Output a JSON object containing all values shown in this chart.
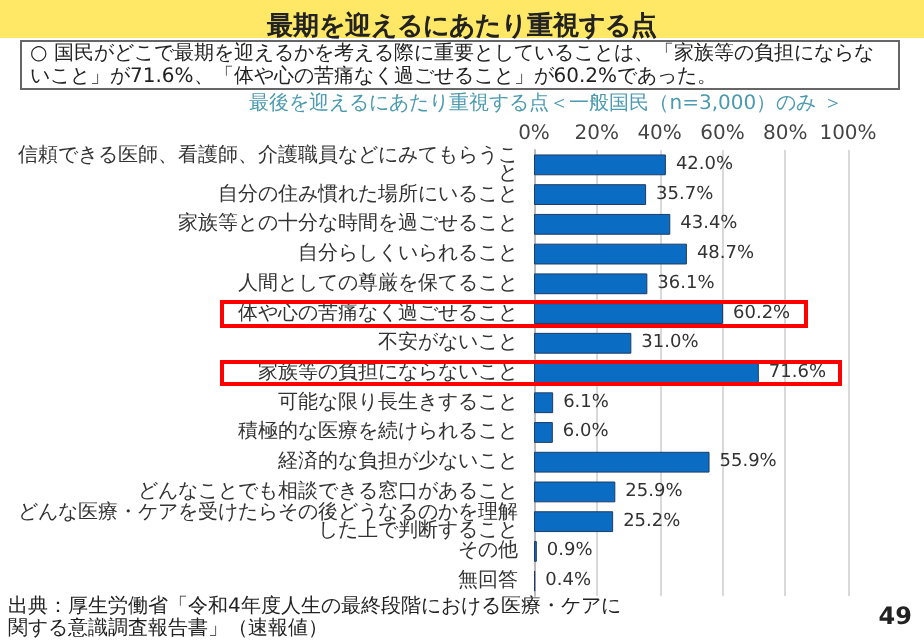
{
  "chart_data": {
    "type": "bar",
    "orientation": "horizontal",
    "title": "最期を迎えるにあたり重視する点",
    "subtitle": "○ 国民がどこで最期を迎えるかを考える際に重要としていることは、「家族等の負担にならないこと」が71.6%、「体や心の苦痛なく過ごせること」が60.2%であった。",
    "annotations": [
      "最後を迎えるにあたり重視する点＜一般国民（n=3,000）のみ ＞",
      "出典：厚生労働省「令和4年度人生の最終段階における医療・ケアに関する意識調査報告書」（速報値）",
      "49"
    ],
    "categories": [
      "信頼できる医師、看護師、介護職員などにみてもらうこと",
      "自分の住み慣れた場所にいること",
      "家族等との十分な時間を過ごせること",
      "自分らしくいられること",
      "人間としての尊厳を保てること",
      "体や心の苦痛なく過ごせること",
      "不安がないこと",
      "家族等の負担にならないこと",
      "可能な限り長生きすること",
      "積極的な医療を続けられること",
      "経済的な負担が少ないこと",
      "どんなことでも相談できる窓口があること",
      "どんな医療・ケアを受けたらその後どうなるのかを理解した上で判断すること",
      "その他",
      "無回答"
    ],
    "values": [
      42.0,
      35.7,
      43.4,
      48.7,
      36.1,
      60.2,
      31.0,
      71.6,
      6.1,
      6.0,
      55.9,
      25.9,
      25.2,
      0.9,
      0.4
    ],
    "value_labels": [
      "42.0%",
      "35.7%",
      "43.4%",
      "48.7%",
      "36.1%",
      "60.2%",
      "31.0%",
      "71.6%",
      "6.1%",
      "6.0%",
      "55.9%",
      "25.9%",
      "25.2%",
      "0.9%",
      "0.4%"
    ],
    "color": "#0b6cc4",
    "xlim": [
      0,
      100
    ],
    "xticks": [
      {
        "value": 0,
        "label": "0%"
      },
      {
        "value": 20,
        "label": "20%"
      },
      {
        "value": 40,
        "label": "40%"
      },
      {
        "value": 60,
        "label": "60%"
      },
      {
        "value": 80,
        "label": "80%"
      },
      {
        "value": 100,
        "label": "100%"
      }
    ],
    "grid": "x"
  }
}
